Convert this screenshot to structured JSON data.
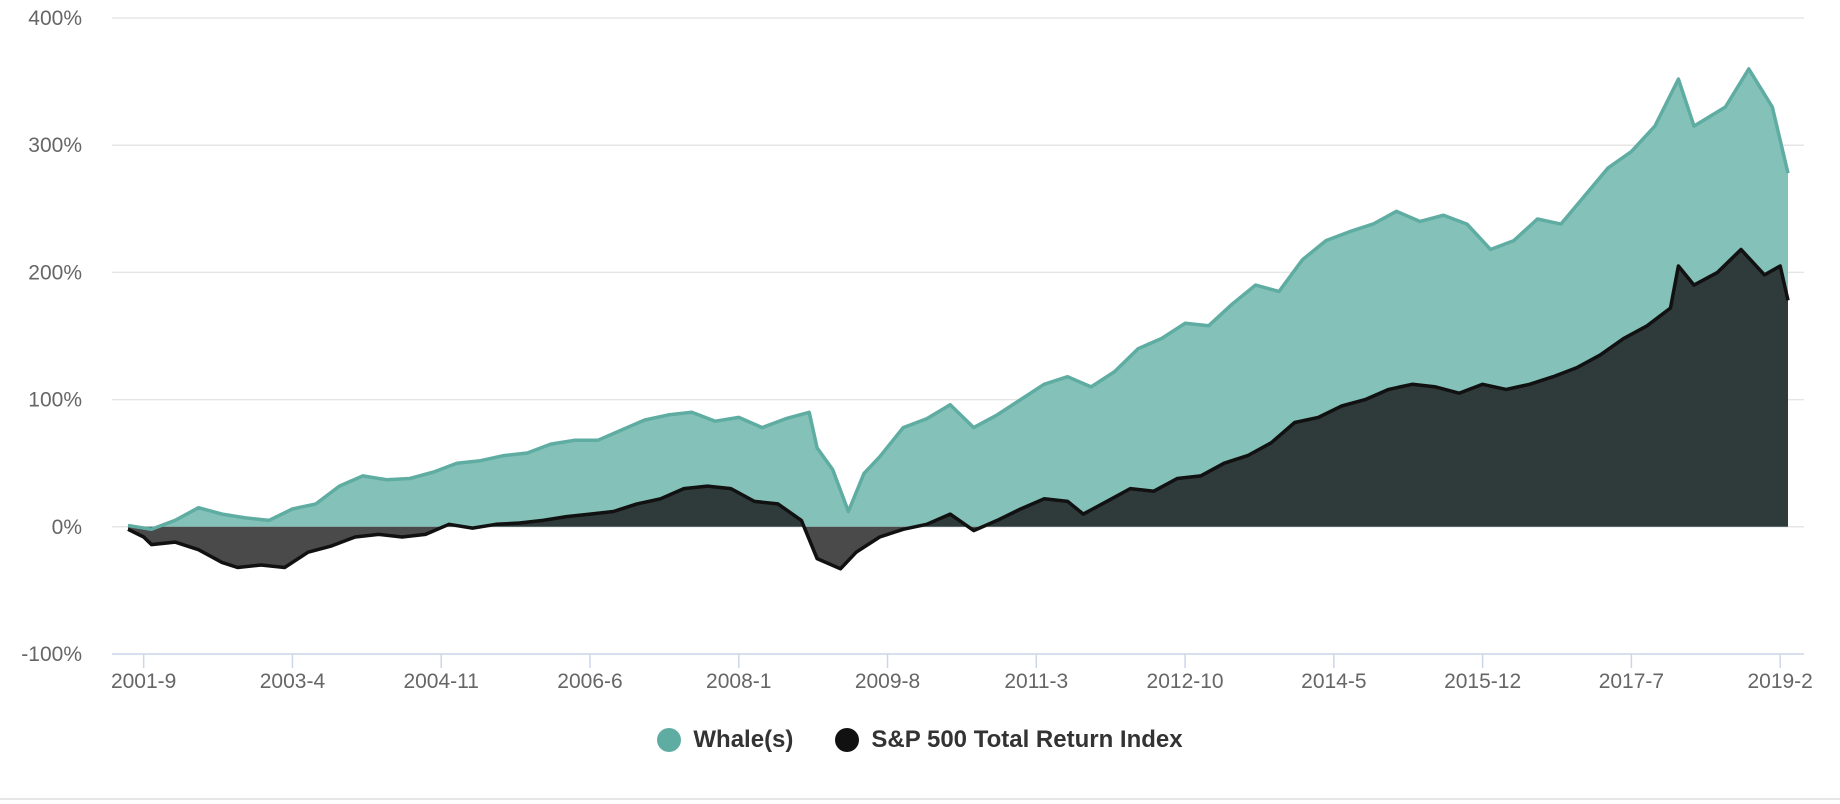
{
  "chart_data": {
    "type": "area",
    "x_tick_labels": [
      "2001-9",
      "2003-4",
      "2004-11",
      "2006-6",
      "2008-1",
      "2009-8",
      "2011-3",
      "2012-10",
      "2014-5",
      "2015-12",
      "2017-7",
      "2019-2"
    ],
    "y_tick_labels": [
      "400%",
      "300%",
      "200%",
      "100%",
      "0%",
      "-100%"
    ],
    "ylim": [
      -100,
      400
    ],
    "y_unit": "%",
    "grid": true,
    "legend_position": "bottom-center",
    "series": [
      {
        "name": "Whale(s)",
        "color": "#5fada2",
        "fill": "#84c1b9",
        "points": [
          [
            "2001-7",
            1
          ],
          [
            "2001-10",
            -2
          ],
          [
            "2002-1",
            5
          ],
          [
            "2002-4",
            15
          ],
          [
            "2002-7",
            10
          ],
          [
            "2002-10",
            7
          ],
          [
            "2003-1",
            5
          ],
          [
            "2003-4",
            14
          ],
          [
            "2003-7",
            18
          ],
          [
            "2003-10",
            32
          ],
          [
            "2004-1",
            40
          ],
          [
            "2004-4",
            37
          ],
          [
            "2004-7",
            38
          ],
          [
            "2004-10",
            43
          ],
          [
            "2005-1",
            50
          ],
          [
            "2005-4",
            52
          ],
          [
            "2005-7",
            56
          ],
          [
            "2005-10",
            58
          ],
          [
            "2006-1",
            65
          ],
          [
            "2006-4",
            68
          ],
          [
            "2006-7",
            68
          ],
          [
            "2006-10",
            76
          ],
          [
            "2007-1",
            84
          ],
          [
            "2007-4",
            88
          ],
          [
            "2007-7",
            90
          ],
          [
            "2007-10",
            83
          ],
          [
            "2008-1",
            86
          ],
          [
            "2008-4",
            78
          ],
          [
            "2008-7",
            85
          ],
          [
            "2008-10",
            90
          ],
          [
            "2008-11",
            62
          ],
          [
            "2009-1",
            45
          ],
          [
            "2009-3",
            12
          ],
          [
            "2009-5",
            42
          ],
          [
            "2009-7",
            55
          ],
          [
            "2009-10",
            78
          ],
          [
            "2010-1",
            85
          ],
          [
            "2010-4",
            96
          ],
          [
            "2010-7",
            78
          ],
          [
            "2010-10",
            88
          ],
          [
            "2011-1",
            100
          ],
          [
            "2011-4",
            112
          ],
          [
            "2011-7",
            118
          ],
          [
            "2011-10",
            110
          ],
          [
            "2012-1",
            122
          ],
          [
            "2012-4",
            140
          ],
          [
            "2012-7",
            148
          ],
          [
            "2012-10",
            160
          ],
          [
            "2013-1",
            158
          ],
          [
            "2013-4",
            175
          ],
          [
            "2013-7",
            190
          ],
          [
            "2013-10",
            185
          ],
          [
            "2014-1",
            210
          ],
          [
            "2014-4",
            225
          ],
          [
            "2014-7",
            232
          ],
          [
            "2014-10",
            238
          ],
          [
            "2015-1",
            248
          ],
          [
            "2015-4",
            240
          ],
          [
            "2015-7",
            245
          ],
          [
            "2015-10",
            238
          ],
          [
            "2016-1",
            218
          ],
          [
            "2016-4",
            225
          ],
          [
            "2016-7",
            242
          ],
          [
            "2016-10",
            238
          ],
          [
            "2017-1",
            260
          ],
          [
            "2017-4",
            282
          ],
          [
            "2017-7",
            295
          ],
          [
            "2017-10",
            315
          ],
          [
            "2018-1",
            352
          ],
          [
            "2018-3",
            315
          ],
          [
            "2018-7",
            330
          ],
          [
            "2018-10",
            360
          ],
          [
            "2019-1",
            330
          ],
          [
            "2019-3",
            278
          ]
        ]
      },
      {
        "name": "S&P 500 Total Return Index",
        "color": "#111111",
        "fill": "#2f3b3b",
        "neg_fill": "#4a4a4a",
        "points": [
          [
            "2001-7",
            -2
          ],
          [
            "2001-9",
            -8
          ],
          [
            "2001-10",
            -14
          ],
          [
            "2002-1",
            -12
          ],
          [
            "2002-4",
            -18
          ],
          [
            "2002-7",
            -28
          ],
          [
            "2002-9",
            -32
          ],
          [
            "2002-12",
            -30
          ],
          [
            "2003-3",
            -32
          ],
          [
            "2003-6",
            -20
          ],
          [
            "2003-9",
            -15
          ],
          [
            "2003-12",
            -8
          ],
          [
            "2004-3",
            -6
          ],
          [
            "2004-6",
            -8
          ],
          [
            "2004-9",
            -6
          ],
          [
            "2004-12",
            2
          ],
          [
            "2005-3",
            -1
          ],
          [
            "2005-6",
            2
          ],
          [
            "2005-9",
            3
          ],
          [
            "2005-12",
            5
          ],
          [
            "2006-3",
            8
          ],
          [
            "2006-6",
            10
          ],
          [
            "2006-9",
            12
          ],
          [
            "2006-12",
            18
          ],
          [
            "2007-3",
            22
          ],
          [
            "2007-6",
            30
          ],
          [
            "2007-9",
            32
          ],
          [
            "2007-12",
            30
          ],
          [
            "2008-3",
            20
          ],
          [
            "2008-6",
            18
          ],
          [
            "2008-9",
            5
          ],
          [
            "2008-11",
            -25
          ],
          [
            "2009-2",
            -33
          ],
          [
            "2009-4",
            -20
          ],
          [
            "2009-7",
            -8
          ],
          [
            "2009-10",
            -2
          ],
          [
            "2010-1",
            2
          ],
          [
            "2010-4",
            10
          ],
          [
            "2010-7",
            -3
          ],
          [
            "2010-10",
            5
          ],
          [
            "2011-1",
            14
          ],
          [
            "2011-4",
            22
          ],
          [
            "2011-7",
            20
          ],
          [
            "2011-9",
            10
          ],
          [
            "2011-12",
            20
          ],
          [
            "2012-3",
            30
          ],
          [
            "2012-6",
            28
          ],
          [
            "2012-9",
            38
          ],
          [
            "2012-12",
            40
          ],
          [
            "2013-3",
            50
          ],
          [
            "2013-6",
            56
          ],
          [
            "2013-9",
            66
          ],
          [
            "2013-12",
            82
          ],
          [
            "2014-3",
            86
          ],
          [
            "2014-6",
            95
          ],
          [
            "2014-9",
            100
          ],
          [
            "2014-12",
            108
          ],
          [
            "2015-3",
            112
          ],
          [
            "2015-6",
            110
          ],
          [
            "2015-9",
            105
          ],
          [
            "2015-12",
            112
          ],
          [
            "2016-3",
            108
          ],
          [
            "2016-6",
            112
          ],
          [
            "2016-9",
            118
          ],
          [
            "2016-12",
            125
          ],
          [
            "2017-3",
            135
          ],
          [
            "2017-6",
            148
          ],
          [
            "2017-9",
            158
          ],
          [
            "2017-12",
            172
          ],
          [
            "2018-1",
            205
          ],
          [
            "2018-3",
            190
          ],
          [
            "2018-6",
            200
          ],
          [
            "2018-9",
            218
          ],
          [
            "2018-12",
            198
          ],
          [
            "2019-2",
            205
          ],
          [
            "2019-3",
            178
          ]
        ]
      }
    ]
  }
}
